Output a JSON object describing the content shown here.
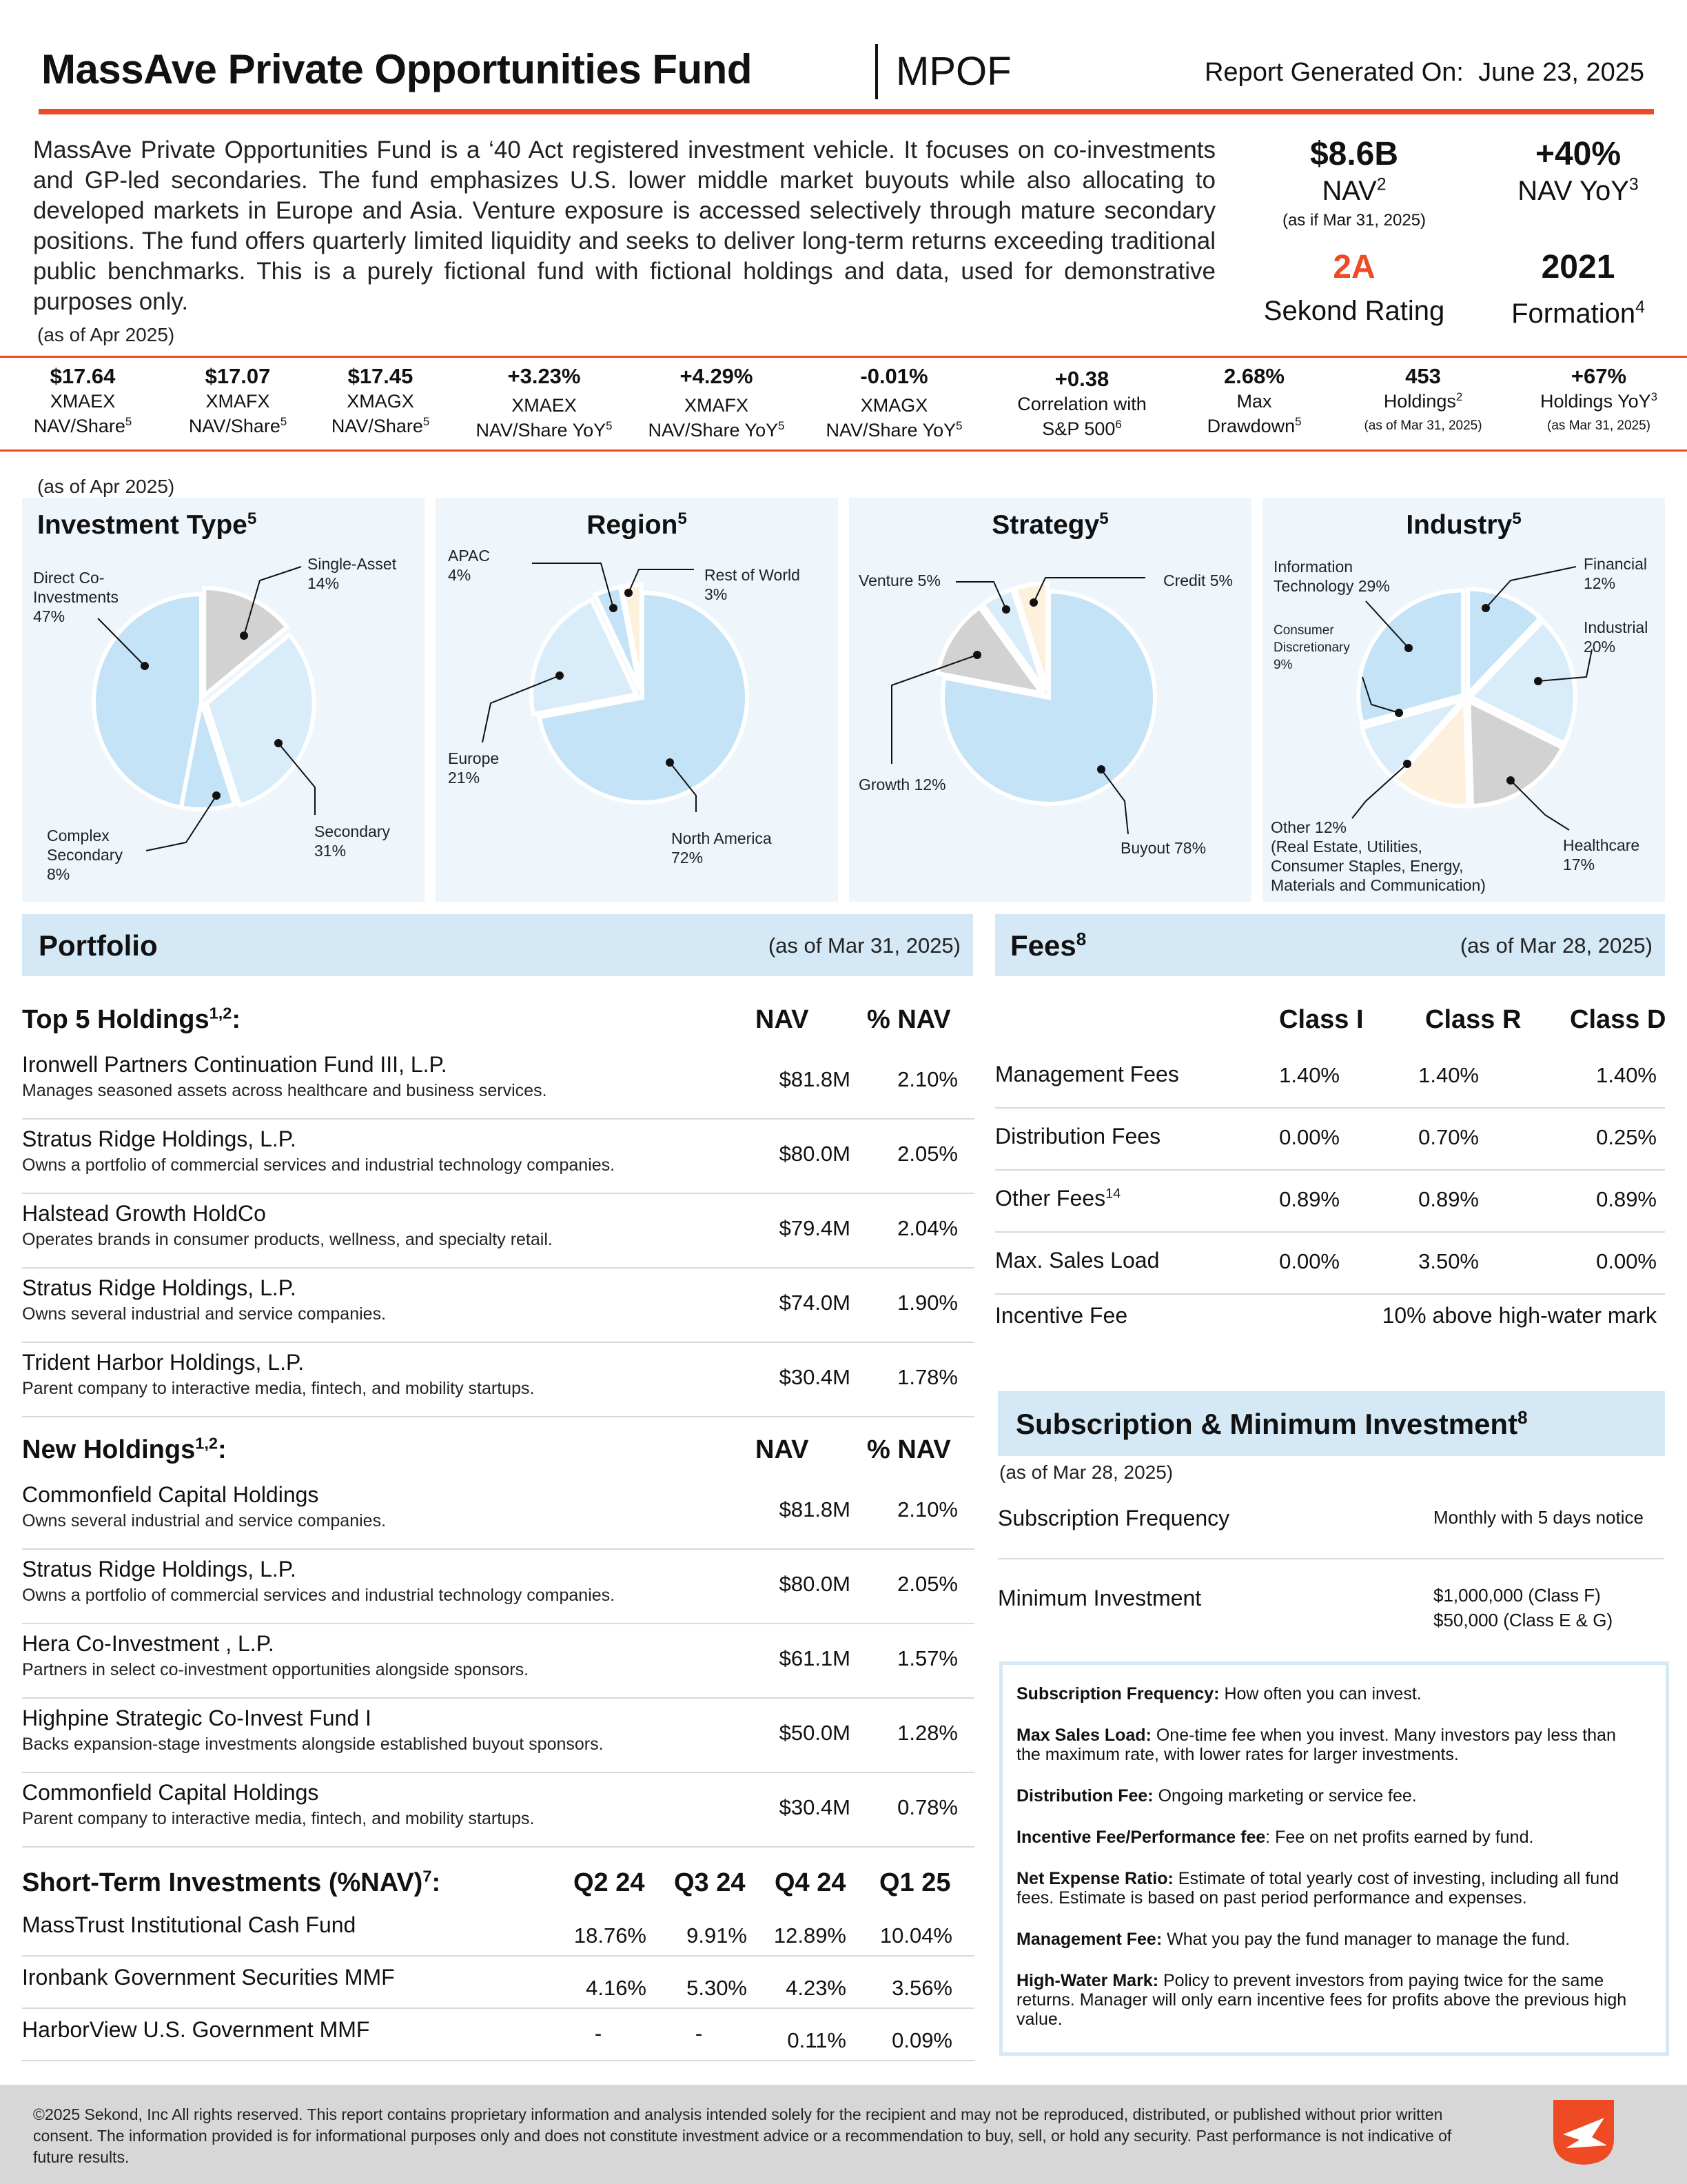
{
  "header": {
    "title": "MassAve Private Opportunities Fund",
    "ticker": "MPOF",
    "report_label": "Report Generated On:",
    "report_date": "June 23, 2025"
  },
  "intro": {
    "text": "MassAve Private Opportunities Fund is a ‘40 Act registered investment vehicle. It focuses on co-investments and GP-led secondaries. The fund emphasizes U.S. lower middle market buyouts while also allocating to developed markets in Europe and Asia. Venture exposure is accessed selectively through mature secondary positions. The fund offers quarterly limited liquidity and seeks to deliver long-term returns exceeding traditional public benchmarks. This is a purely fictional fund with fictional holdings and data, used for demonstrative purposes only.",
    "as_of": "(as of Apr 2025)"
  },
  "kpis": {
    "nav": {
      "value": "$8.6B",
      "label": "NAV",
      "sup": "2",
      "sub": "(as if Mar 31, 2025)"
    },
    "nav_yoy": {
      "value": "+40%",
      "label": "NAV YoY",
      "sup": "3"
    },
    "rating": {
      "value": "2A",
      "label": "Sekond Rating"
    },
    "formation": {
      "value": "2021",
      "label": "Formation",
      "sup": "4"
    }
  },
  "stats": [
    {
      "value": "$17.64",
      "line1": "XMAEX",
      "line2": "NAV/Share",
      "sup": "5"
    },
    {
      "value": "$17.07",
      "line1": "XMAFX",
      "line2": "NAV/Share",
      "sup": "5"
    },
    {
      "value": "$17.45",
      "line1": "XMAGX",
      "line2": "NAV/Share",
      "sup": "5"
    },
    {
      "value": "+3.23%",
      "line1": "XMAEX",
      "line2": "NAV/Share YoY",
      "sup": "5"
    },
    {
      "value": "+4.29%",
      "line1": "XMAFX",
      "line2": "NAV/Share YoY",
      "sup": "5"
    },
    {
      "value": "-0.01%",
      "line1": "XMAGX",
      "line2": "NAV/Share YoY",
      "sup": "5"
    },
    {
      "value": "+0.38",
      "line1": "Correlation with",
      "line2": "S&P 500",
      "sup": "6"
    },
    {
      "value": "2.68%",
      "line1": "Max",
      "line2": "Drawdown",
      "sup": "5"
    },
    {
      "value": "453",
      "line1": "Holdings",
      "line1_sup": "2",
      "small": "(as of Mar 31, 2025)"
    },
    {
      "value": "+67%",
      "line1": "Holdings YoY",
      "line1_sup": "3",
      "small": "(as Mar 31, 2025)"
    }
  ],
  "allocation_as_of": "(as of Apr 2025)",
  "chart_data": [
    {
      "type": "pie",
      "title": "Investment Type",
      "title_sup": "5",
      "categories": [
        "Direct Co-Investments",
        "Single-Asset",
        "Secondary",
        "Complex Secondary"
      ],
      "values": [
        47,
        14,
        31,
        8
      ]
    },
    {
      "type": "pie",
      "title": "Region",
      "title_sup": "5",
      "categories": [
        "North America",
        "Europe",
        "APAC",
        "Rest of World"
      ],
      "values": [
        72,
        21,
        4,
        3
      ]
    },
    {
      "type": "pie",
      "title": "Strategy",
      "title_sup": "5",
      "categories": [
        "Buyout",
        "Growth",
        "Venture",
        "Credit"
      ],
      "values": [
        78,
        12,
        5,
        5
      ]
    },
    {
      "type": "pie",
      "title": "Industry",
      "title_sup": "5",
      "categories": [
        "Financial",
        "Industrial",
        "Healthcare",
        "Other",
        "Consumer Discretionary",
        "Information Technology"
      ],
      "values": [
        12,
        20,
        17,
        12,
        9,
        29
      ]
    }
  ],
  "pie_labels": {
    "investment_type": {
      "direct": [
        "Direct Co-",
        "Investments",
        "47%"
      ],
      "single": [
        "Single-Asset",
        "14%"
      ],
      "secondary": [
        "Secondary",
        "31%"
      ],
      "complex": [
        "Complex",
        "Secondary",
        "8%"
      ]
    },
    "region": {
      "apac": [
        "APAC",
        "4%"
      ],
      "row": [
        "Rest of World",
        "3%"
      ],
      "europe": [
        "Europe",
        "21%"
      ],
      "na": [
        "North America",
        "72%"
      ]
    },
    "strategy": {
      "venture": "Venture 5%",
      "credit": "Credit 5%",
      "growth": "Growth 12%",
      "buyout": "Buyout 78%"
    },
    "industry": {
      "it": [
        "Information",
        "Technology 29%"
      ],
      "financial": [
        "Financial",
        "12%"
      ],
      "consumer": [
        "Consumer",
        "Discretionary",
        "9%"
      ],
      "industrial": [
        "Industrial",
        "20%"
      ],
      "other": [
        "Other 12%",
        "(Real Estate, Utilities,",
        "Consumer Staples, Energy,",
        "Materials and Communication)"
      ],
      "healthcare": [
        "Healthcare",
        "17%"
      ]
    }
  },
  "portfolio": {
    "title": "Portfolio",
    "as_of": "(as of Mar 31, 2025)",
    "top_title": "Top 5 Holdings",
    "top_sup": "1,2",
    "nav_col": "NAV",
    "pct_col": "% NAV",
    "top": [
      {
        "name": "Ironwell Partners Continuation Fund III, L.P.",
        "desc": "Manages seasoned assets across healthcare and business services.",
        "nav": "$81.8M",
        "pct": "2.10%"
      },
      {
        "name": "Stratus Ridge Holdings, L.P.",
        "desc": "Owns a portfolio of commercial services and industrial technology companies.",
        "nav": "$80.0M",
        "pct": "2.05%"
      },
      {
        "name": "Halstead Growth HoldCo",
        "desc": "Operates brands in consumer products, wellness, and specialty retail.",
        "nav": "$79.4M",
        "pct": "2.04%"
      },
      {
        "name": "Stratus Ridge Holdings, L.P.",
        "desc": "Owns several industrial and service companies.",
        "nav": "$74.0M",
        "pct": "1.90%"
      },
      {
        "name": "Trident Harbor Holdings, L.P.",
        "desc": "Parent company to interactive media, fintech, and mobility startups.",
        "nav": "$30.4M",
        "pct": "1.78%"
      }
    ],
    "new_title": "New Holdings",
    "new_sup": "1,2",
    "new": [
      {
        "name": "Commonfield Capital Holdings",
        "desc": "Owns several industrial and service companies.",
        "nav": "$81.8M",
        "pct": "2.10%"
      },
      {
        "name": "Stratus Ridge Holdings, L.P.",
        "desc": "Owns a portfolio of commercial services and industrial technology companies.",
        "nav": "$80.0M",
        "pct": "2.05%"
      },
      {
        "name": "Hera Co-Investment , L.P.",
        "desc": "Partners in select co-investment opportunities alongside sponsors.",
        "nav": "$61.1M",
        "pct": "1.57%"
      },
      {
        "name": "Highpine Strategic Co-Invest Fund I",
        "desc": "Backs expansion-stage investments alongside established buyout sponsors.",
        "nav": "$50.0M",
        "pct": "1.28%"
      },
      {
        "name": "Commonfield Capital Holdings",
        "desc": "Parent company to interactive media, fintech, and mobility startups.",
        "nav": "$30.4M",
        "pct": "0.78%"
      }
    ]
  },
  "short_term": {
    "title": "Short-Term Investments (%NAV)",
    "sup": "7",
    "cols": [
      "Q2 24",
      "Q3 24",
      "Q4 24",
      "Q1 25"
    ],
    "rows": [
      {
        "name": "MassTrust Institutional Cash Fund",
        "vals": [
          "18.76%",
          "9.91%",
          "12.89%",
          "10.04%"
        ]
      },
      {
        "name": "Ironbank Government Securities MMF",
        "vals": [
          "4.16%",
          "5.30%",
          "4.23%",
          "3.56%"
        ]
      },
      {
        "name": "HarborView U.S. Government MMF",
        "vals": [
          "-",
          "-",
          "0.11%",
          "0.09%"
        ]
      }
    ]
  },
  "fees": {
    "title": "Fees",
    "sup": "8",
    "as_of": "(as of Mar 28, 2025)",
    "cols": [
      "Class I",
      "Class R",
      "Class D"
    ],
    "rows": [
      {
        "label": "Management Fees",
        "vals": [
          "1.40%",
          "1.40%",
          "1.40%"
        ]
      },
      {
        "label": "Distribution Fees",
        "vals": [
          "0.00%",
          "0.70%",
          "0.25%"
        ]
      },
      {
        "label": "Other Fees",
        "sup": "14",
        "vals": [
          "0.89%",
          "0.89%",
          "0.89%"
        ]
      },
      {
        "label": "Max. Sales Load",
        "vals": [
          "0.00%",
          "3.50%",
          "0.00%"
        ]
      }
    ],
    "incentive_label": "Incentive Fee",
    "incentive_value": "10% above high-water mark"
  },
  "subscription": {
    "title": "Subscription & Minimum Investment",
    "sup": "8",
    "as_of": "(as of Mar 28, 2025)",
    "freq_label": "Subscription Frequency",
    "freq_value": "Monthly with 5 days notice",
    "min_label": "Minimum Investment",
    "min_value_1": "$1,000,000 (Class F)",
    "min_value_2": "$50,000 (Class E & G)"
  },
  "glossary": [
    {
      "term": "Subscription Frequency:",
      "def": "How often you can invest."
    },
    {
      "term": "Max Sales Load:",
      "def": "One-time fee when you invest. Many investors pay less than the maximum rate, with lower rates for larger investments."
    },
    {
      "term": "Distribution Fee:",
      "def": "Ongoing marketing or service fee."
    },
    {
      "term": "Incentive Fee/Performance fee",
      "def": ": Fee on net profits earned by fund."
    },
    {
      "term": "Net Expense Ratio:",
      "def": "Estimate of total yearly cost of investing, including all fund fees. Estimate is based on past period performance and expenses."
    },
    {
      "term": "Management Fee:",
      "def": "What you pay the fund manager to manage the fund."
    },
    {
      "term": "High-Water Mark:",
      "def": "Policy to prevent investors from paying twice for the same returns. Manager will only earn incentive fees for profits above the previous high value."
    }
  ],
  "footer": {
    "text": "©2025 Sekond, Inc All rights reserved. This report contains proprietary information and analysis intended solely for the recipient and may not be reproduced, distributed, or published without prior written consent. The information provided is for informational purposes only and does not constitute investment advice or a recommendation to buy, sell, or hold any security. Past performance is not indicative of future results."
  },
  "colors": {
    "accent": "#ee4a23",
    "panel_bg": "#eef6fc",
    "header_bg": "#d4e8f6",
    "pie_blue": "#c4e3f7",
    "pie_blue_light": "#d8ecfa",
    "pie_gray": "#d2d2d2",
    "pie_cream": "#fdf1dd"
  }
}
